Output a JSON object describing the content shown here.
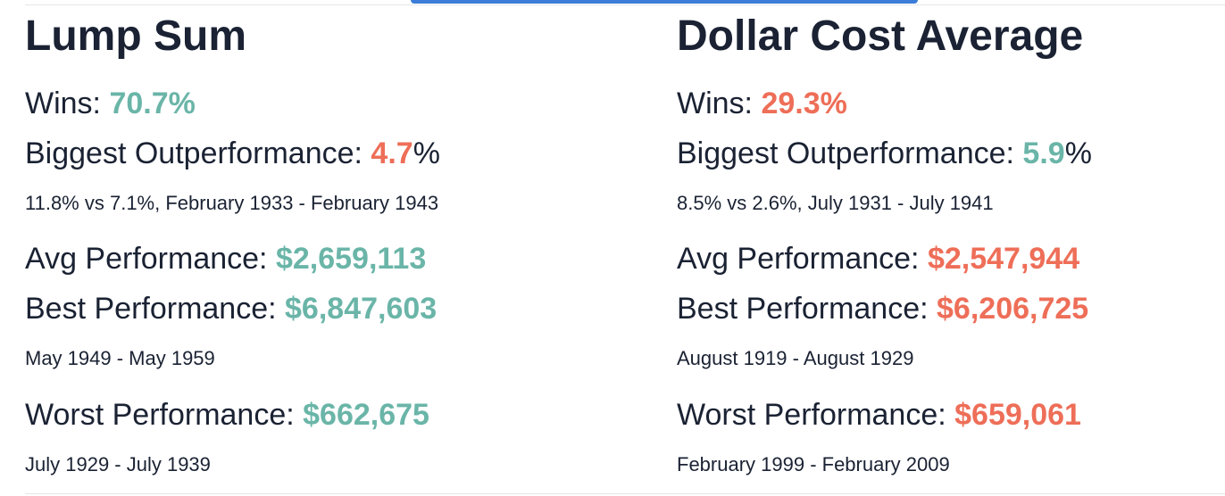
{
  "lump_sum": {
    "title": "Lump Sum",
    "wins_label": "Wins: ",
    "wins_value": "70.7%",
    "outperf_label": "Biggest Outperformance: ",
    "outperf_value": "4.7",
    "outperf_suffix": "%",
    "outperf_detail": "11.8% vs 7.1%, February 1933 - February 1943",
    "avg_label": "Avg Performance: ",
    "avg_value": "$2,659,113",
    "best_label": "Best Performance: ",
    "best_value": "$6,847,603",
    "best_period": "May 1949 - May 1959",
    "worst_label": "Worst Performance: ",
    "worst_value": "$662,675",
    "worst_period": "July 1929 - July 1939"
  },
  "dca": {
    "title": "Dollar Cost Average",
    "wins_label": "Wins: ",
    "wins_value": "29.3%",
    "outperf_label": "Biggest Outperformance: ",
    "outperf_value": "5.9",
    "outperf_suffix": "%",
    "outperf_detail": "8.5% vs 2.6%, July 1931 - July 1941",
    "avg_label": "Avg Performance: ",
    "avg_value": "$2,547,944",
    "best_label": "Best Performance: ",
    "best_value": "$6,206,725",
    "best_period": "August 1919 - August 1929",
    "worst_label": "Worst Performance: ",
    "worst_value": "$659,061",
    "worst_period": "February 1999 - February 2009"
  },
  "colors": {
    "positive": "#6ab5a8",
    "negative": "#ee6e58",
    "text": "#1a2233",
    "accent_tab": "#3b7dd8"
  }
}
